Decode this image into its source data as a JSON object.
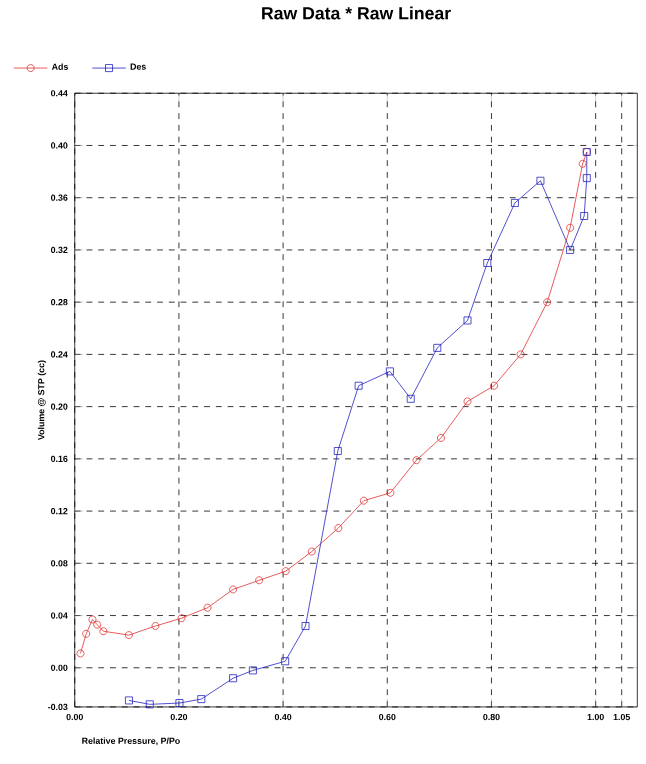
{
  "chart_data": {
    "type": "line",
    "title": "Raw Data * Raw Linear",
    "xlabel": "Relative Pressure, P/Po",
    "ylabel": "Volume @ STP (cc)",
    "xlim": [
      0,
      1.08
    ],
    "ylim": [
      -0.03,
      0.44
    ],
    "xticks": [
      {
        "value": 0,
        "label": "0.00"
      },
      {
        "value": 0.2,
        "label": "0.20"
      },
      {
        "value": 0.4,
        "label": "0.40"
      },
      {
        "value": 0.6,
        "label": "0.60"
      },
      {
        "value": 0.8,
        "label": "0.80"
      },
      {
        "value": 1.0,
        "label": "1.00"
      },
      {
        "value": 1.05,
        "label": "1.05"
      }
    ],
    "yticks": [
      {
        "value": -0.03,
        "label": "-0.03"
      },
      {
        "value": 0,
        "label": "0.00"
      },
      {
        "value": 0.04,
        "label": "0.04"
      },
      {
        "value": 0.08,
        "label": "0.08"
      },
      {
        "value": 0.12,
        "label": "0.12"
      },
      {
        "value": 0.16,
        "label": "0.16"
      },
      {
        "value": 0.2,
        "label": "0.20"
      },
      {
        "value": 0.24,
        "label": "0.24"
      },
      {
        "value": 0.28,
        "label": "0.28"
      },
      {
        "value": 0.32,
        "label": "0.32"
      },
      {
        "value": 0.36,
        "label": "0.36"
      },
      {
        "value": 0.4,
        "label": "0.40"
      },
      {
        "value": 0.44,
        "label": "0.44"
      }
    ],
    "grid": true,
    "legend": "top left",
    "line_style": "solid",
    "series": [
      {
        "name": "Ads",
        "color": "#e03030",
        "marker": "circle",
        "x": [
          0.011,
          0.022,
          0.034,
          0.043,
          0.055,
          0.104,
          0.155,
          0.205,
          0.255,
          0.304,
          0.354,
          0.405,
          0.455,
          0.506,
          0.555,
          0.606,
          0.656,
          0.703,
          0.754,
          0.805,
          0.856,
          0.907,
          0.951,
          0.975,
          0.983
        ],
        "values": [
          0.011,
          0.026,
          0.037,
          0.033,
          0.028,
          0.025,
          0.032,
          0.038,
          0.046,
          0.06,
          0.067,
          0.074,
          0.089,
          0.107,
          0.128,
          0.134,
          0.159,
          0.176,
          0.204,
          0.216,
          0.24,
          0.28,
          0.337,
          0.386,
          0.395
        ]
      },
      {
        "name": "Des",
        "color": "#2020c0",
        "marker": "square",
        "x": [
          0.983,
          0.983,
          0.978,
          0.951,
          0.894,
          0.845,
          0.792,
          0.754,
          0.696,
          0.645,
          0.605,
          0.545,
          0.505,
          0.443,
          0.404,
          0.342,
          0.304,
          0.243,
          0.201,
          0.144,
          0.104
        ],
        "values": [
          0.395,
          0.375,
          0.346,
          0.32,
          0.373,
          0.356,
          0.31,
          0.266,
          0.245,
          0.206,
          0.227,
          0.216,
          0.166,
          0.032,
          0.005,
          -0.002,
          -0.008,
          -0.024,
          -0.027,
          -0.028,
          -0.025
        ]
      }
    ]
  }
}
